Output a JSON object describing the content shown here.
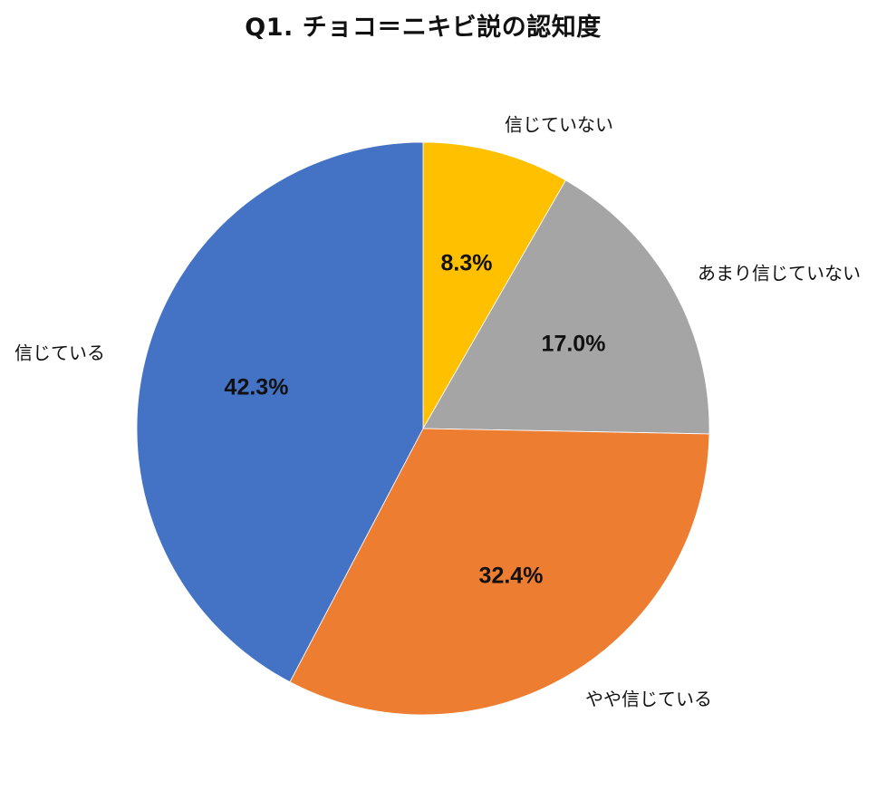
{
  "chart_data": {
    "type": "pie",
    "title": "Q1. チョコ＝ニキビ説の認知度",
    "start_angle": "top (12 o'clock), clockwise",
    "slices": [
      {
        "label": "信じていない",
        "value": 8.3,
        "display": "8.3%",
        "color": "#FFC000"
      },
      {
        "label": "あまり信じていない",
        "value": 17.0,
        "display": "17.0%",
        "color": "#A5A5A5"
      },
      {
        "label": "やや信じている",
        "value": 32.4,
        "display": "32.4%",
        "color": "#ED7D31"
      },
      {
        "label": "信じている",
        "value": 42.3,
        "display": "42.3%",
        "color": "#4472C4"
      }
    ],
    "legend": "none (category labels placed outside slices)",
    "data_labels": "percent, bold, inside slices"
  }
}
